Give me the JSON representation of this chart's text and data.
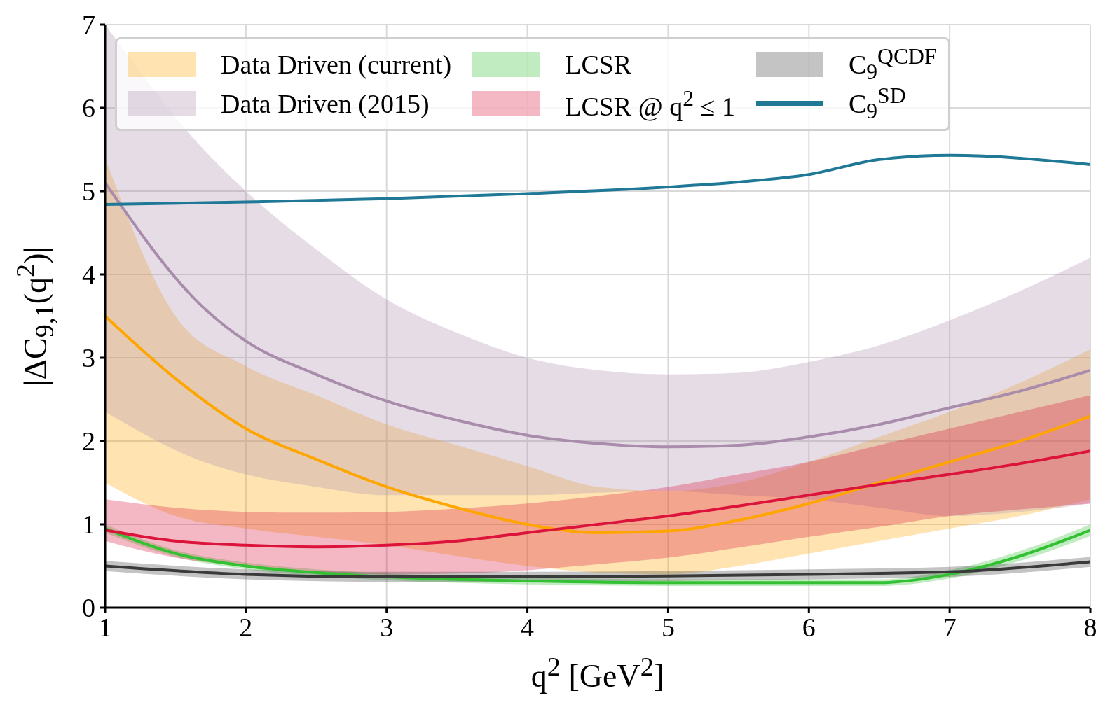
{
  "chart_data": {
    "type": "line",
    "xlabel": "q$^{2}$ [GeV$^{2}$]",
    "ylabel": "|ΔC$_{9,1}$(q$^{2}$)|",
    "xlim": [
      1,
      8
    ],
    "ylim": [
      0,
      7
    ],
    "xticks": [
      1,
      2,
      3,
      4,
      5,
      6,
      7,
      8
    ],
    "yticks": [
      0,
      1,
      2,
      3,
      4,
      5,
      6,
      7
    ],
    "grid": true,
    "legend": "top",
    "line_style": "solid",
    "series": [
      {
        "name": "Data Driven (current)",
        "color": "#ffa500",
        "x": [
          1,
          1.5,
          2,
          2.5,
          3,
          3.5,
          4,
          4.5,
          5,
          5.5,
          6,
          6.5,
          7,
          7.5,
          8
        ],
        "values": [
          3.5,
          2.75,
          2.15,
          1.78,
          1.45,
          1.2,
          1.0,
          0.9,
          0.92,
          1.05,
          1.25,
          1.5,
          1.75,
          2.0,
          2.3
        ],
        "lower": [
          1.5,
          1.1,
          0.95,
          0.85,
          0.75,
          0.62,
          0.5,
          0.42,
          0.4,
          0.5,
          0.65,
          0.8,
          0.95,
          1.1,
          1.3
        ],
        "upper": [
          5.4,
          3.5,
          2.9,
          2.55,
          2.2,
          1.95,
          1.7,
          1.45,
          1.4,
          1.5,
          1.75,
          2.05,
          2.35,
          2.7,
          3.1
        ]
      },
      {
        "name": "Data Driven (2015)",
        "color": "#a98bab",
        "x": [
          1,
          1.7,
          2,
          2.5,
          3,
          3.5,
          4,
          4.5,
          5,
          5.5,
          6,
          6.5,
          7,
          7.5,
          8
        ],
        "values": [
          5.1,
          3.6,
          3.2,
          2.8,
          2.48,
          2.25,
          2.07,
          1.97,
          1.93,
          1.95,
          2.05,
          2.2,
          2.4,
          2.6,
          2.85
        ],
        "lower": [
          2.35,
          1.75,
          1.6,
          1.45,
          1.35,
          1.35,
          1.35,
          1.38,
          1.4,
          1.35,
          1.3,
          1.2,
          1.1,
          1.15,
          1.25
        ],
        "upper": [
          7,
          5.5,
          5.0,
          4.3,
          3.7,
          3.3,
          3.0,
          2.85,
          2.8,
          2.82,
          2.95,
          3.15,
          3.45,
          3.8,
          4.2
        ]
      },
      {
        "name": "LCSR",
        "color": "#33c133",
        "x": [
          1,
          1.5,
          2,
          2.5,
          3,
          4,
          5,
          6,
          6.5,
          7,
          7.5,
          8
        ],
        "values": [
          0.95,
          0.65,
          0.5,
          0.42,
          0.37,
          0.32,
          0.3,
          0.3,
          0.3,
          0.4,
          0.62,
          0.93
        ],
        "lower": [
          0.9,
          0.61,
          0.46,
          0.38,
          0.33,
          0.28,
          0.26,
          0.26,
          0.26,
          0.35,
          0.56,
          0.86
        ],
        "upper": [
          1.0,
          0.69,
          0.54,
          0.46,
          0.41,
          0.36,
          0.34,
          0.34,
          0.34,
          0.45,
          0.68,
          1.0
        ]
      },
      {
        "name": "LCSR @ q$^{2}$ ≤ 1",
        "color": "#dc143c",
        "x": [
          1,
          1.5,
          2,
          2.5,
          3,
          3.5,
          4,
          4.5,
          5,
          5.5,
          6,
          6.5,
          7,
          7.5,
          8
        ],
        "values": [
          0.93,
          0.8,
          0.75,
          0.73,
          0.75,
          0.8,
          0.9,
          1.0,
          1.1,
          1.22,
          1.35,
          1.48,
          1.6,
          1.73,
          1.88
        ],
        "lower": [
          0.8,
          0.6,
          0.5,
          0.43,
          0.4,
          0.41,
          0.45,
          0.52,
          0.6,
          0.72,
          0.85,
          0.97,
          1.1,
          1.18,
          1.25
        ],
        "upper": [
          1.3,
          1.2,
          1.15,
          1.14,
          1.15,
          1.19,
          1.25,
          1.34,
          1.45,
          1.6,
          1.75,
          1.95,
          2.15,
          2.35,
          2.55
        ]
      },
      {
        "name": "C$_{9}$$^{QCDF}$",
        "color": "#3a3a3a",
        "x": [
          1,
          2,
          3,
          4,
          5,
          6,
          7,
          8
        ],
        "values": [
          0.5,
          0.4,
          0.37,
          0.37,
          0.38,
          0.4,
          0.43,
          0.55
        ],
        "lower": [
          0.44,
          0.34,
          0.31,
          0.31,
          0.32,
          0.34,
          0.37,
          0.49
        ],
        "upper": [
          0.56,
          0.46,
          0.43,
          0.43,
          0.44,
          0.46,
          0.49,
          0.61
        ]
      },
      {
        "name": "C$_{9}$$^{SD}$",
        "color": "#1f7896",
        "x": [
          1,
          2,
          3,
          4,
          5,
          5.5,
          6,
          6.5,
          7,
          8
        ],
        "values": [
          4.84,
          4.87,
          4.91,
          4.97,
          5.05,
          5.11,
          5.2,
          5.38,
          5.43,
          5.32
        ]
      }
    ]
  }
}
